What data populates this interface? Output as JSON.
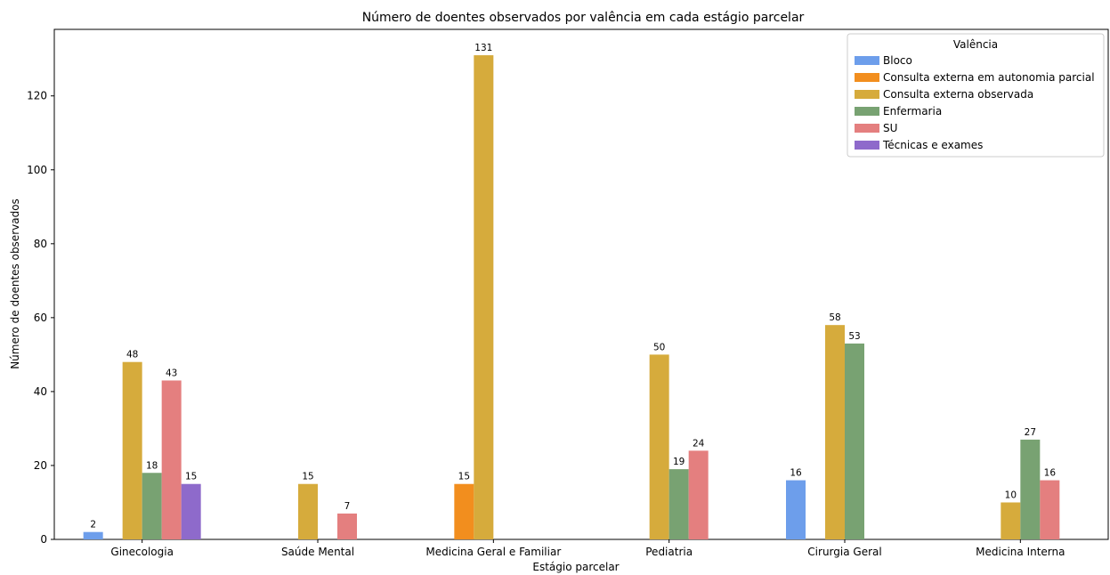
{
  "chart_data": {
    "type": "bar",
    "title": "Número de doentes observados por valência em cada estágio parcelar",
    "xlabel": "Estágio parcelar",
    "ylabel": "Número de doentes observados",
    "ylim": [
      0,
      138
    ],
    "yticks": [
      0,
      20,
      40,
      60,
      80,
      100,
      120
    ],
    "grid": false,
    "legend_position": "top-right",
    "legend_title": "Valência",
    "categories": [
      "Ginecologia",
      "Saúde Mental",
      "Medicina Geral e Familiar",
      "Pediatria",
      "Cirurgia Geral",
      "Medicina Interna"
    ],
    "series": [
      {
        "name": "Bloco",
        "color": "#6d9eeb",
        "values": [
          2,
          null,
          null,
          null,
          16,
          null
        ]
      },
      {
        "name": "Consulta externa em autonomia parcial",
        "color": "#f28e1e",
        "values": [
          null,
          null,
          15,
          null,
          null,
          null
        ]
      },
      {
        "name": "Consulta externa observada",
        "color": "#d6ab3c",
        "values": [
          48,
          15,
          131,
          50,
          58,
          10
        ]
      },
      {
        "name": "Enfermaria",
        "color": "#78a272",
        "values": [
          18,
          null,
          null,
          19,
          53,
          27
        ]
      },
      {
        "name": "SU",
        "color": "#e47f7f",
        "values": [
          43,
          7,
          null,
          24,
          null,
          16
        ]
      },
      {
        "name": "Técnicas e exames",
        "color": "#8e6acb",
        "values": [
          15,
          null,
          null,
          null,
          null,
          null
        ]
      }
    ]
  }
}
